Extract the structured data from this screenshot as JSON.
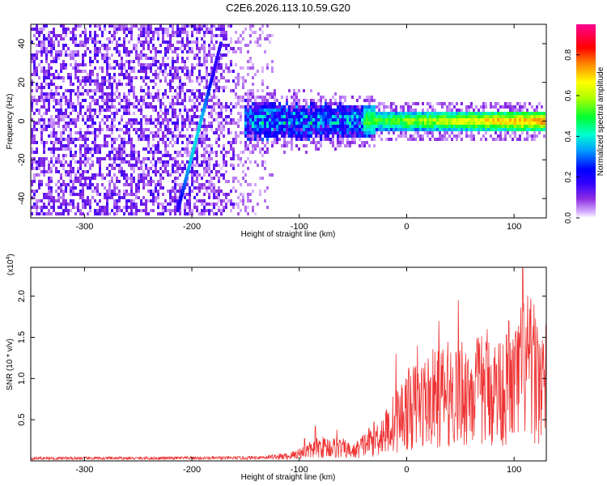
{
  "title": "C2E6.2026.113.10.59.G20",
  "chart_data": [
    {
      "type": "heatmap",
      "name": "spectrogram",
      "xlabel": "Height of straight line (km)",
      "ylabel": "Frequency (Hz)",
      "xlim": [
        -350,
        130
      ],
      "ylim": [
        -50,
        50
      ],
      "xticks": [
        -300,
        -200,
        -100,
        0,
        100
      ],
      "yticks": [
        -40,
        -20,
        0,
        20,
        40
      ],
      "colorbar": {
        "label": "Normalized spectral amplitude",
        "range": [
          0.0,
          0.95
        ],
        "ticks": [
          "0.0",
          "0.2",
          "0.4",
          "0.6",
          "0.8"
        ],
        "tick_values": [
          0.0,
          0.2,
          0.4,
          0.6,
          0.8
        ]
      },
      "colors": [
        "#ffffff",
        "#d8c0f0",
        "#8a2be2",
        "#4b00ff",
        "#0000ff",
        "#00b4ff",
        "#00ffc8",
        "#00ff00",
        "#ffff00",
        "#ff8000",
        "#ff0000",
        "#ff00ff"
      ],
      "features": {
        "noise_region_x": [
          -350,
          -125
        ],
        "chirp_start": [
          -213,
          -46
        ],
        "chirp_end": [
          -173,
          40
        ],
        "signal_band_center_hz": 0,
        "signal_start_km": -150
      }
    },
    {
      "type": "line",
      "name": "snr",
      "xlabel": "Height of straight line (km)",
      "ylabel": "SNR (10 * v/v)",
      "multiplier": "(x10",
      "multiplier_exp": "4",
      "multiplier_close": ")",
      "xlim": [
        -350,
        130
      ],
      "ylim": [
        0,
        2.35
      ],
      "xticks": [
        -300,
        -200,
        -100,
        0,
        100
      ],
      "yticks": [
        0.5,
        1.0,
        1.5,
        2.0
      ],
      "ytick_labels": [
        "0.5",
        "1.0",
        "1.5",
        "2.0"
      ],
      "color": "#ee3333",
      "envelope": [
        [
          -350,
          0.04
        ],
        [
          -250,
          0.04
        ],
        [
          -150,
          0.045
        ],
        [
          -110,
          0.07
        ],
        [
          -100,
          0.12
        ],
        [
          -80,
          0.22
        ],
        [
          -60,
          0.2
        ],
        [
          -50,
          0.14
        ],
        [
          -40,
          0.25
        ],
        [
          -20,
          0.45
        ],
        [
          0,
          0.8
        ],
        [
          20,
          0.95
        ],
        [
          40,
          1.05
        ],
        [
          60,
          1.1
        ],
        [
          80,
          1.1
        ],
        [
          100,
          1.15
        ],
        [
          110,
          1.5
        ],
        [
          130,
          1.2
        ]
      ],
      "peaks": [
        [
          -95,
          0.27
        ],
        [
          -85,
          0.42
        ],
        [
          -65,
          0.38
        ],
        [
          -10,
          1.3
        ],
        [
          10,
          1.4
        ],
        [
          30,
          1.7
        ],
        [
          48,
          1.95
        ],
        [
          75,
          1.6
        ],
        [
          95,
          1.7
        ],
        [
          108,
          2.35
        ],
        [
          122,
          1.45
        ]
      ]
    }
  ]
}
